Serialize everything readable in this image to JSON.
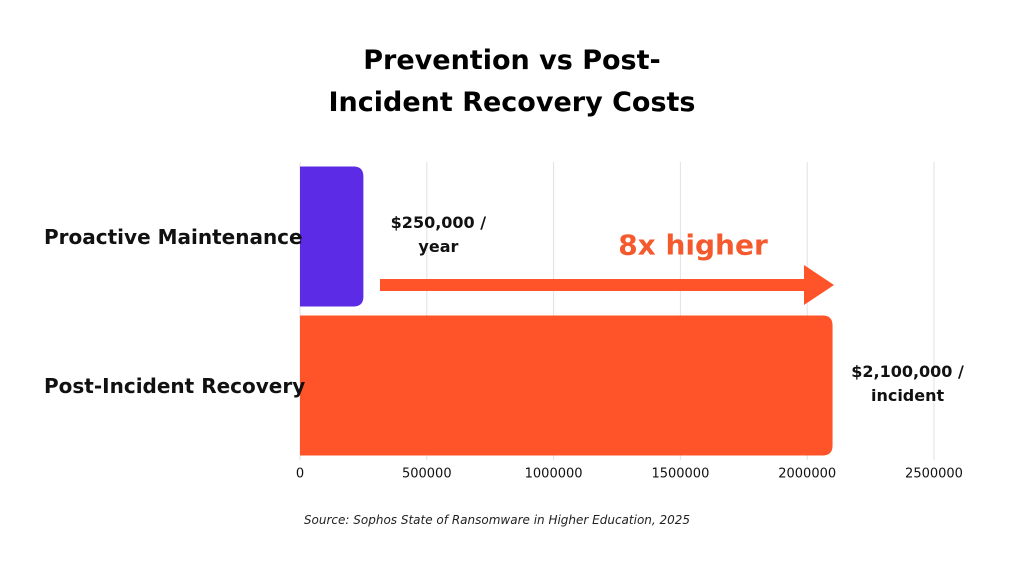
{
  "chart_data": {
    "type": "hbar",
    "title": "Prevention vs Post-Incident Recovery Costs",
    "categories": [
      "Proactive Maintenance",
      "Post-Incident Recovery"
    ],
    "values": [
      250000,
      2100000
    ],
    "value_labels": [
      "$250,000 / year",
      "$2,100,000 / incident"
    ],
    "colors": [
      "#5b2be6",
      "#ff5429"
    ],
    "xlim": [
      0,
      2500000
    ],
    "xticks": [
      0,
      500000,
      1000000,
      1500000,
      2000000,
      2500000
    ],
    "grid": true,
    "annotation": "8x higher",
    "annotation_color": "#f45a2e",
    "source": "Source: Sophos State of Ransomware in Higher Education, 2025"
  }
}
